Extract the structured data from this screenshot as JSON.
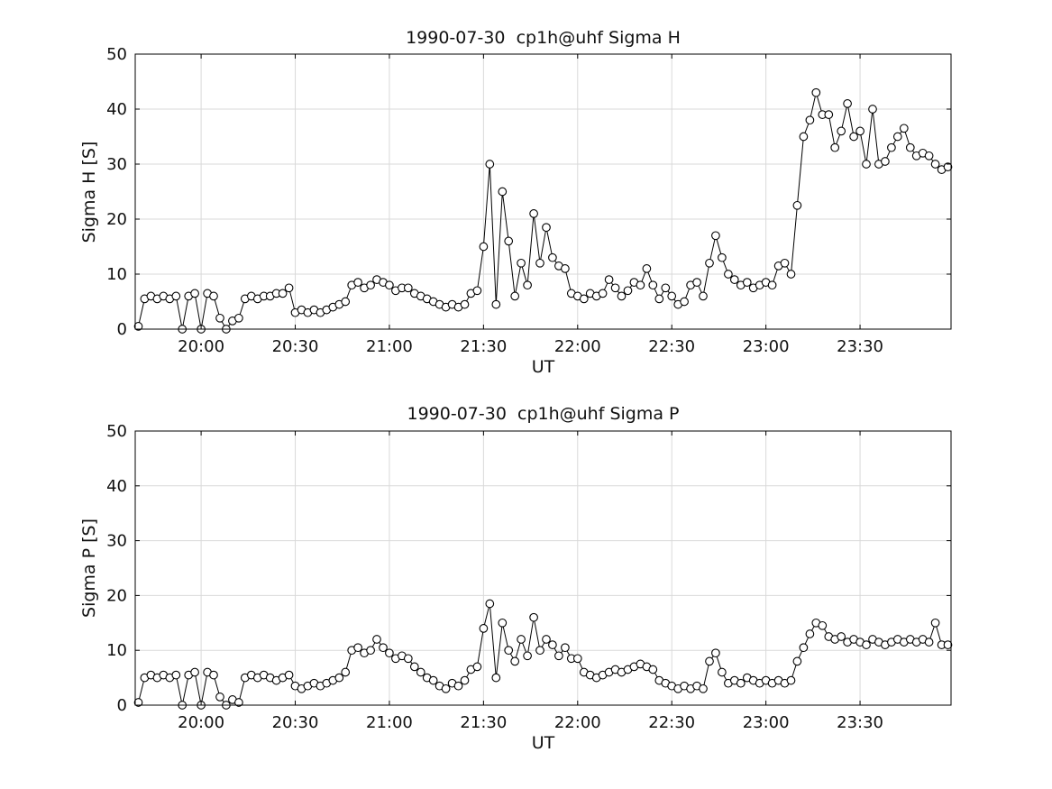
{
  "figure": {
    "background": "#ffffff",
    "axis_color": "#000000",
    "grid_color": "#d9d9d9",
    "marker_fill": "#ffffff"
  },
  "chart_data": [
    {
      "type": "line",
      "title": "1990-07-30  cp1h@uhf Sigma H",
      "xlabel": "UT",
      "ylabel": "Sigma H [S]",
      "xlim_hours": [
        19.65,
        23.9833
      ],
      "ylim": [
        0,
        50
      ],
      "yticks": [
        0,
        10,
        20,
        30,
        40,
        50
      ],
      "xticks": [
        {
          "value": 20.0,
          "label": "20:00"
        },
        {
          "value": 20.5,
          "label": "20:30"
        },
        {
          "value": 21.0,
          "label": "21:00"
        },
        {
          "value": 21.5,
          "label": "21:30"
        },
        {
          "value": 22.0,
          "label": "22:00"
        },
        {
          "value": 22.5,
          "label": "22:30"
        },
        {
          "value": 23.0,
          "label": "23:00"
        },
        {
          "value": 23.5,
          "label": "23:30"
        }
      ],
      "grid": true,
      "marker": "circle",
      "line_color": "#000000",
      "x_start": "19:40",
      "x_step_minutes": 2,
      "values": [
        0.5,
        5.5,
        6,
        5.5,
        6,
        5.5,
        6,
        0,
        6,
        6.5,
        0,
        6.5,
        6,
        2,
        0,
        1.5,
        2,
        5.5,
        6,
        5.5,
        6,
        6,
        6.5,
        6.5,
        7.5,
        3,
        3.5,
        3,
        3.5,
        3,
        3.5,
        4,
        4.5,
        5,
        8,
        8.5,
        7.5,
        8,
        9,
        8.5,
        8,
        7,
        7.5,
        7.5,
        6.5,
        6,
        5.5,
        5,
        4.5,
        4,
        4.5,
        4,
        4.5,
        6.5,
        7,
        15,
        30,
        4.5,
        25,
        16,
        6,
        12,
        8,
        21,
        12,
        18.5,
        13,
        11.5,
        11,
        6.5,
        6,
        5.5,
        6.5,
        6,
        6.5,
        9,
        7.5,
        6,
        7,
        8.5,
        8,
        11,
        8,
        5.5,
        7.5,
        6,
        4.5,
        5,
        8,
        8.5,
        6,
        12,
        17,
        13,
        10,
        9,
        8,
        8.5,
        7.5,
        8,
        8.5,
        8,
        11.5,
        12,
        10,
        22.5,
        35,
        38,
        43,
        39,
        39,
        33,
        36,
        41,
        35,
        36,
        30,
        40,
        30,
        30.5,
        33,
        35,
        36.5,
        33,
        31.5,
        32,
        31.5,
        30,
        29,
        29.5
      ]
    },
    {
      "type": "line",
      "title": "1990-07-30  cp1h@uhf Sigma P",
      "xlabel": "UT",
      "ylabel": "Sigma P [S]",
      "xlim_hours": [
        19.65,
        23.9833
      ],
      "ylim": [
        0,
        50
      ],
      "yticks": [
        0,
        10,
        20,
        30,
        40,
        50
      ],
      "xticks": [
        {
          "value": 20.0,
          "label": "20:00"
        },
        {
          "value": 20.5,
          "label": "20:30"
        },
        {
          "value": 21.0,
          "label": "21:00"
        },
        {
          "value": 21.5,
          "label": "21:30"
        },
        {
          "value": 22.0,
          "label": "22:00"
        },
        {
          "value": 22.5,
          "label": "22:30"
        },
        {
          "value": 23.0,
          "label": "23:00"
        },
        {
          "value": 23.5,
          "label": "23:30"
        }
      ],
      "grid": true,
      "marker": "circle",
      "line_color": "#000000",
      "x_start": "19:40",
      "x_step_minutes": 2,
      "values": [
        0.5,
        5,
        5.5,
        5,
        5.5,
        5,
        5.5,
        0,
        5.5,
        6,
        0,
        6,
        5.5,
        1.5,
        0,
        1,
        0.5,
        5,
        5.5,
        5,
        5.5,
        5,
        4.5,
        5,
        5.5,
        3.5,
        3,
        3.5,
        4,
        3.5,
        4,
        4.5,
        5,
        6,
        10,
        10.5,
        9.5,
        10,
        12,
        10.5,
        9.5,
        8.5,
        9,
        8.5,
        7,
        6,
        5,
        4.5,
        3.5,
        3,
        4,
        3.5,
        4.5,
        6.5,
        7,
        14,
        18.5,
        5,
        15,
        10,
        8,
        12,
        9,
        16,
        10,
        12,
        11,
        9,
        10.5,
        8.5,
        8.5,
        6,
        5.5,
        5,
        5.5,
        6,
        6.5,
        6,
        6.5,
        7,
        7.5,
        7,
        6.5,
        4.5,
        4,
        3.5,
        3,
        3.5,
        3,
        3.5,
        3,
        8,
        9.5,
        6,
        4,
        4.5,
        4,
        5,
        4.5,
        4,
        4.5,
        4,
        4.5,
        4,
        4.5,
        8,
        10.5,
        13,
        15,
        14.5,
        12.5,
        12,
        12.5,
        11.5,
        12,
        11.5,
        11,
        12,
        11.5,
        11,
        11.5,
        12,
        11.5,
        12,
        11.5,
        12,
        11.5,
        15,
        11,
        11
      ]
    }
  ]
}
